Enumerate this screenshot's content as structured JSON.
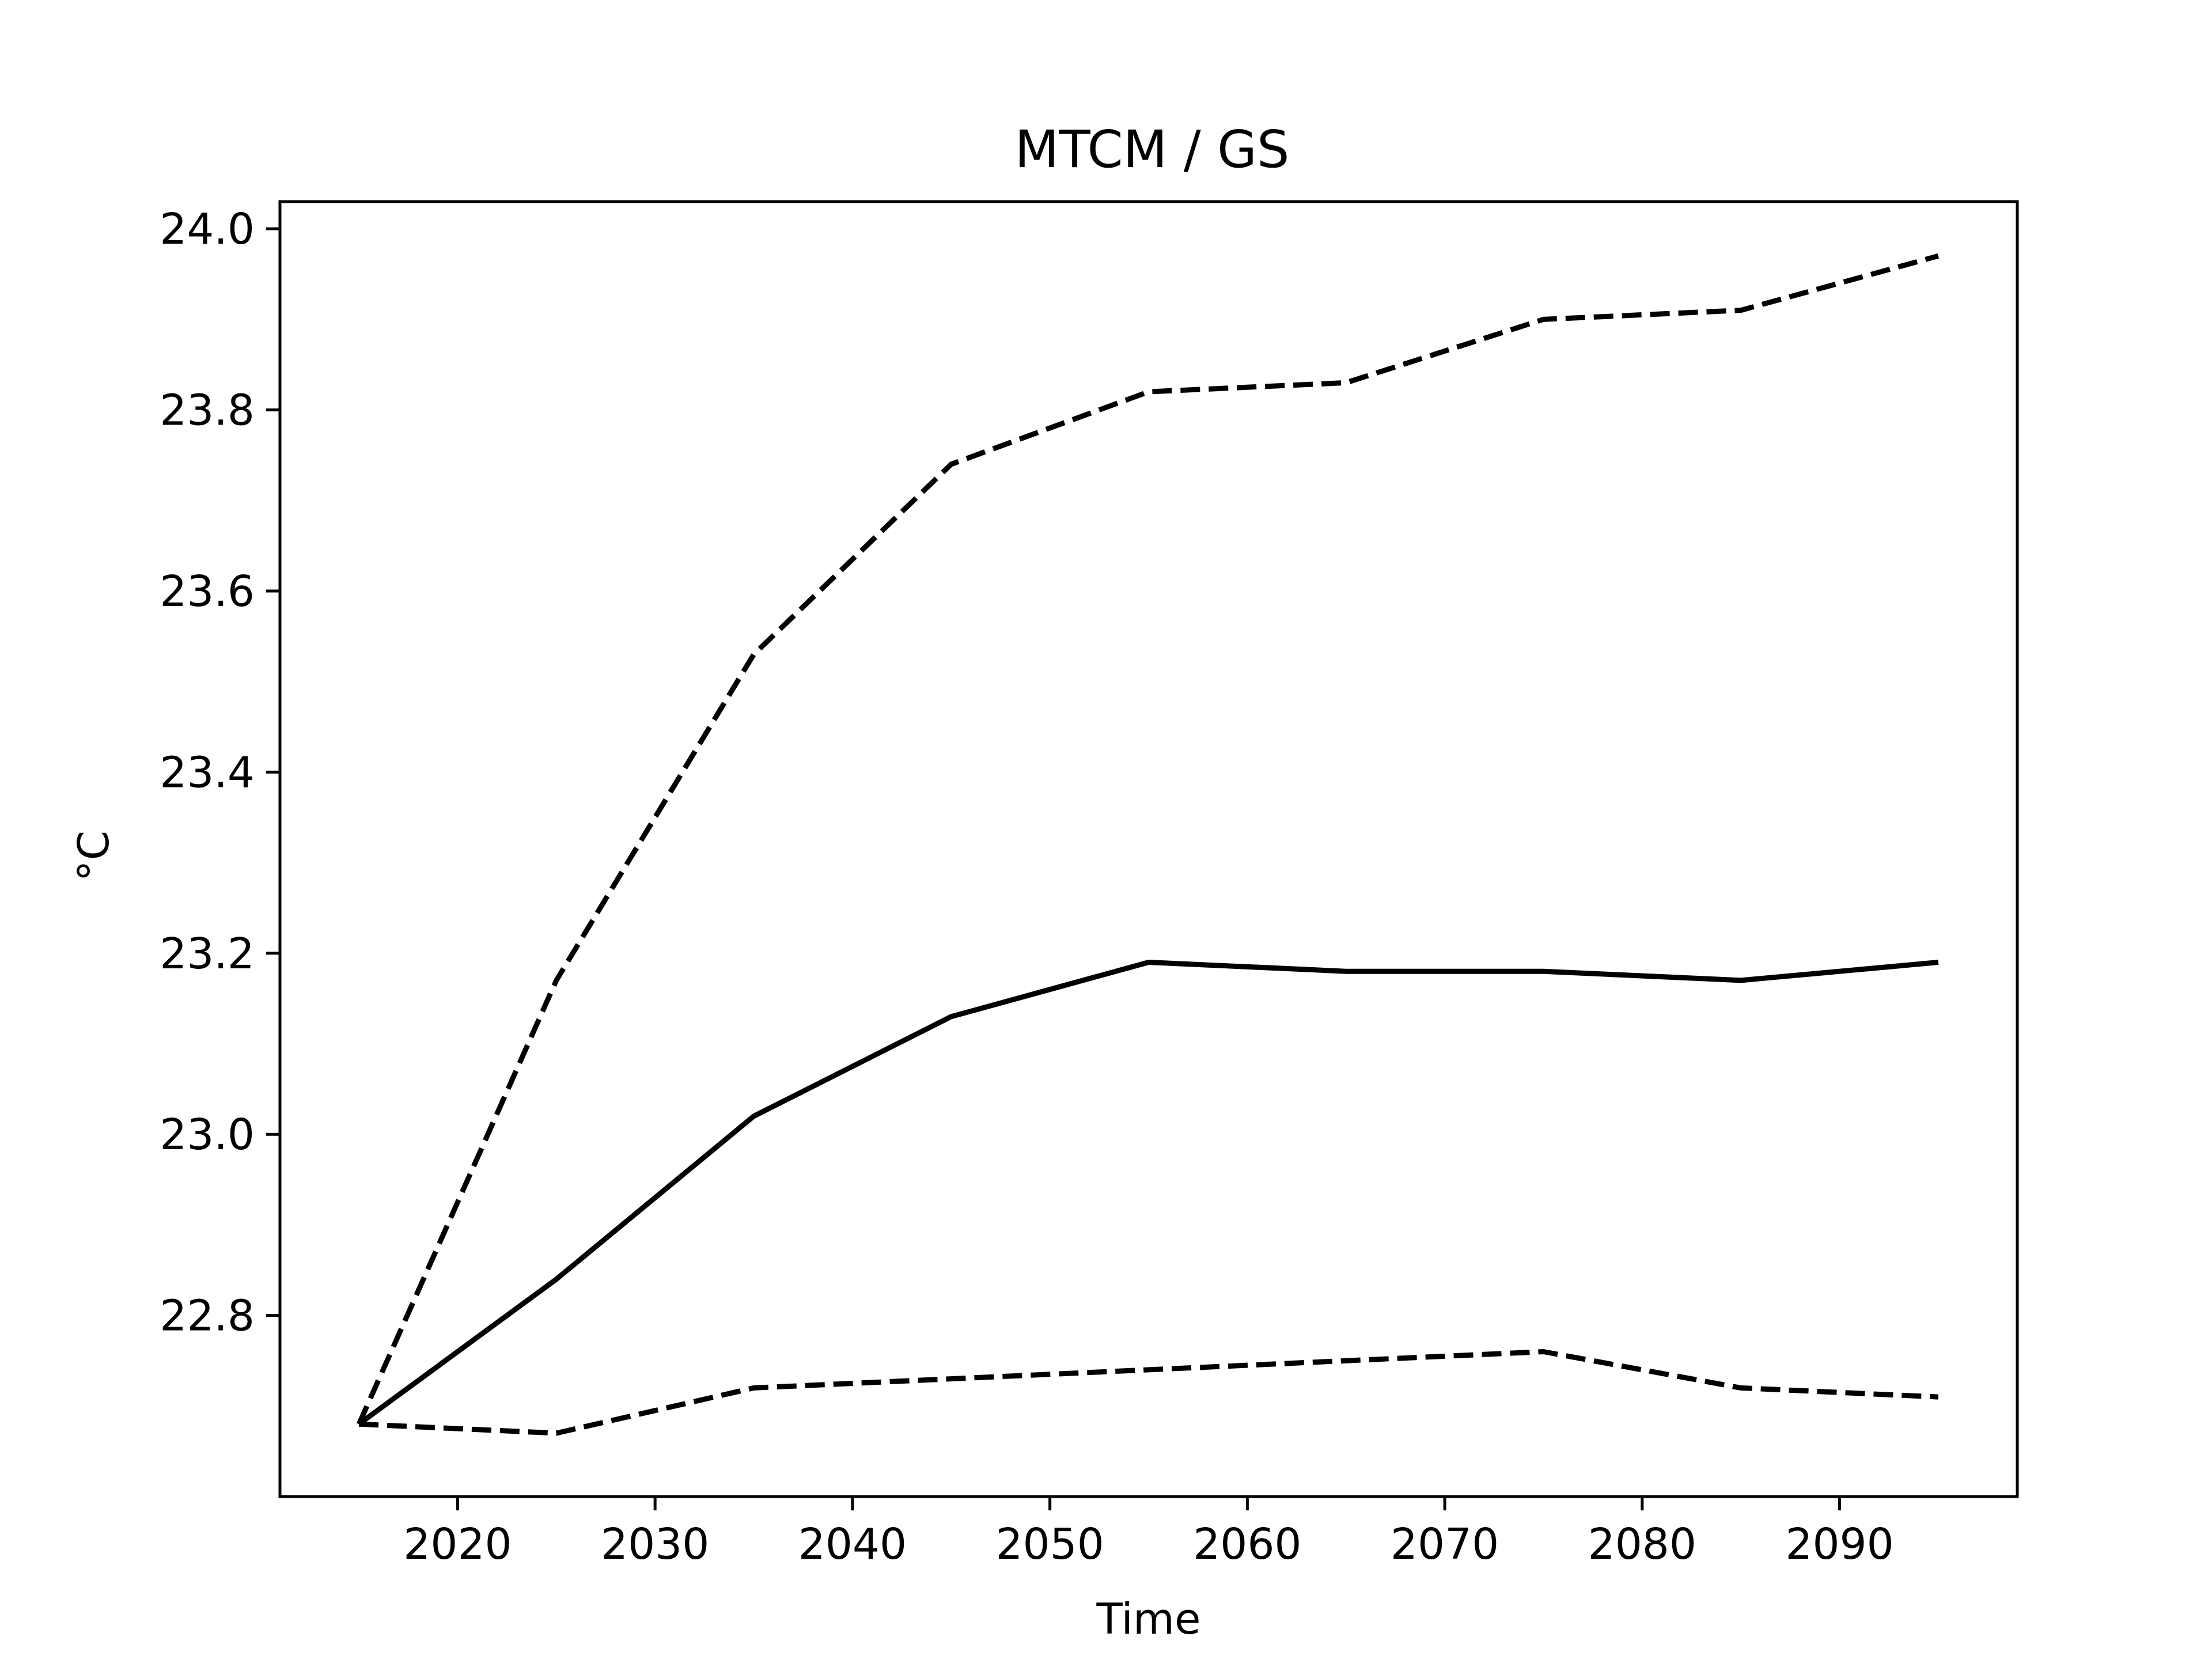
{
  "chart_data": {
    "type": "line",
    "title": "MTCM / GS",
    "xlabel": "Time",
    "ylabel": "°C",
    "xlim": [
      2011,
      2099
    ],
    "ylim": [
      22.6,
      24.03
    ],
    "xticks": [
      2020,
      2030,
      2040,
      2050,
      2060,
      2070,
      2080,
      2090
    ],
    "yticks": [
      22.8,
      23.0,
      23.2,
      23.4,
      23.6,
      23.8,
      24.0
    ],
    "x": [
      2015,
      2025,
      2035,
      2045,
      2055,
      2065,
      2075,
      2085,
      2095
    ],
    "series": [
      {
        "style": "solid",
        "color": "#000000",
        "values": [
          22.68,
          22.84,
          23.02,
          23.13,
          23.19,
          23.18,
          23.18,
          23.17,
          23.19
        ]
      },
      {
        "style": "dashed",
        "color": "#000000",
        "values": [
          22.68,
          23.17,
          23.53,
          23.74,
          23.82,
          23.83,
          23.9,
          23.91,
          23.97
        ]
      },
      {
        "style": "dashed",
        "color": "#000000",
        "values": [
          22.68,
          22.67,
          22.72,
          22.73,
          22.74,
          22.75,
          22.76,
          22.72,
          22.71
        ]
      }
    ],
    "grid": false,
    "legend": "none"
  }
}
